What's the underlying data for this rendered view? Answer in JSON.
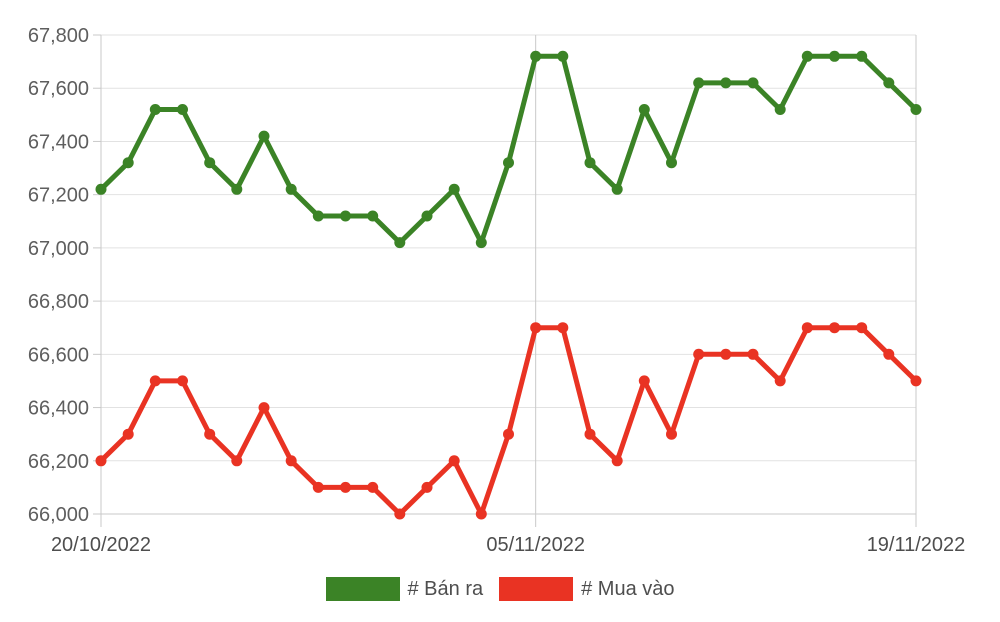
{
  "chart_data": {
    "type": "line",
    "title": "",
    "xlabel": "",
    "ylabel": "",
    "x": [
      "20/10/2022",
      "21/10/2022",
      "22/10/2022",
      "23/10/2022",
      "24/10/2022",
      "25/10/2022",
      "26/10/2022",
      "27/10/2022",
      "28/10/2022",
      "29/10/2022",
      "30/10/2022",
      "31/10/2022",
      "01/11/2022",
      "02/11/2022",
      "03/11/2022",
      "04/11/2022",
      "05/11/2022",
      "06/11/2022",
      "07/11/2022",
      "08/11/2022",
      "09/11/2022",
      "10/11/2022",
      "11/11/2022",
      "12/11/2022",
      "13/11/2022",
      "14/11/2022",
      "15/11/2022",
      "16/11/2022",
      "17/11/2022",
      "18/11/2022",
      "19/11/2022"
    ],
    "x_tick_labels": [
      {
        "index": 0,
        "label": "20/10/2022"
      },
      {
        "index": 16,
        "label": "05/11/2022"
      },
      {
        "index": 30,
        "label": "19/11/2022"
      }
    ],
    "y_ticks": [
      {
        "value": 66000,
        "label": "66,000"
      },
      {
        "value": 66200,
        "label": "66,200"
      },
      {
        "value": 66400,
        "label": "66,400"
      },
      {
        "value": 66600,
        "label": "66,600"
      },
      {
        "value": 66800,
        "label": "66,800"
      },
      {
        "value": 67000,
        "label": "67,000"
      },
      {
        "value": 67200,
        "label": "67,200"
      },
      {
        "value": 67400,
        "label": "67,400"
      },
      {
        "value": 67600,
        "label": "67,600"
      },
      {
        "value": 67800,
        "label": "67,800"
      }
    ],
    "ylim": [
      66000,
      67800
    ],
    "grid": true,
    "legend_position": "bottom",
    "series": [
      {
        "name": "# Bán ra",
        "color": "#3b8326",
        "values": [
          67220,
          67320,
          67520,
          67520,
          67320,
          67220,
          67420,
          67220,
          67120,
          67120,
          67120,
          67020,
          67120,
          67220,
          67020,
          67320,
          67720,
          67720,
          67320,
          67220,
          67520,
          67320,
          67620,
          67620,
          67620,
          67520,
          67720,
          67720,
          67720,
          67620,
          67520
        ]
      },
      {
        "name": "# Mua vào",
        "color": "#e93323",
        "values": [
          66200,
          66300,
          66500,
          66500,
          66300,
          66200,
          66400,
          66200,
          66100,
          66100,
          66100,
          66000,
          66100,
          66200,
          66000,
          66300,
          66700,
          66700,
          66300,
          66200,
          66500,
          66300,
          66600,
          66600,
          66600,
          66500,
          66700,
          66700,
          66700,
          66600,
          66500
        ]
      }
    ]
  }
}
